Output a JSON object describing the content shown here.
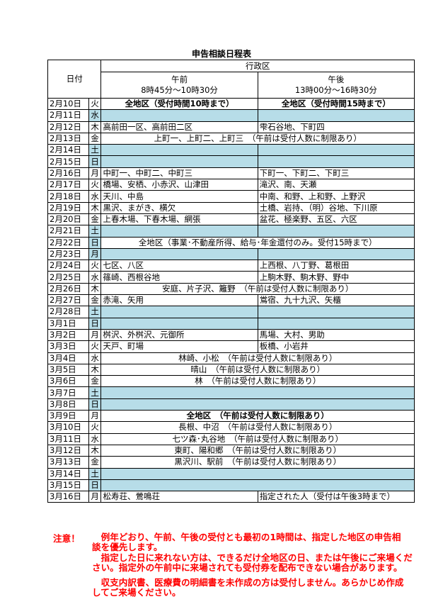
{
  "title": "申告相談日程表",
  "header": {
    "date": "日付",
    "district": "行政区",
    "am_label": "午前",
    "am_time": "8時45分～10時30分",
    "pm_label": "午後",
    "pm_time": "13時00分～16時30分"
  },
  "colors": {
    "holiday_fill": "#b7dde8",
    "notice_text": "#ff0000"
  },
  "rows": [
    {
      "date": "2月10日",
      "wd": "火",
      "type": "split",
      "am": "全地区（受付時間10時まで）",
      "pm": "全地区（受付時間15時まで）",
      "bold": true,
      "center": true
    },
    {
      "date": "2月11日",
      "wd": "水",
      "type": "holiday-split"
    },
    {
      "date": "2月12日",
      "wd": "木",
      "type": "split",
      "am": "高前田一区、高前田二区",
      "pm": "雫石谷地、下町四"
    },
    {
      "date": "2月13日",
      "wd": "金",
      "type": "merged",
      "text": "上町一、上町二、上町三　（午前は受付人数に制限あり）"
    },
    {
      "date": "2月14日",
      "wd": "土",
      "type": "holiday-split"
    },
    {
      "date": "2月15日",
      "wd": "日",
      "type": "holiday-split"
    },
    {
      "date": "2月16日",
      "wd": "月",
      "type": "split",
      "am": "中町一、中町二、中町三",
      "pm": "下町一、下町二、下町三"
    },
    {
      "date": "2月17日",
      "wd": "火",
      "type": "split",
      "am": "橋場、安栖、小赤沢、山津田",
      "pm": "滝沢、南、天瀬"
    },
    {
      "date": "2月18日",
      "wd": "水",
      "type": "split",
      "am": "天川、中島",
      "pm": "中南、和野、上和野、上野沢"
    },
    {
      "date": "2月19日",
      "wd": "木",
      "type": "split",
      "am": "黒沢、まがき、横欠",
      "pm": "土橋、岩持、（明）谷地、下川原"
    },
    {
      "date": "2月20日",
      "wd": "金",
      "type": "split",
      "am": "上春木場、下春木場、網張",
      "pm": "盆花、極楽野、五区、六区"
    },
    {
      "date": "2月21日",
      "wd": "土",
      "type": "holiday-split"
    },
    {
      "date": "2月22日",
      "wd": "日",
      "type": "merged",
      "text": "全地区（事業･不動産所得、給与･年金還付のみ。受付15時まで）",
      "wd_blue": true
    },
    {
      "date": "2月23日",
      "wd": "月",
      "type": "holiday-split"
    },
    {
      "date": "2月24日",
      "wd": "火",
      "type": "split",
      "am": "七区、八区",
      "pm": "上西根、八丁野、葛根田"
    },
    {
      "date": "2月25日",
      "wd": "水",
      "type": "split",
      "am": "篠崎、西根谷地",
      "pm": "上駒木野、駒木野、野中"
    },
    {
      "date": "2月26日",
      "wd": "木",
      "type": "merged",
      "text": "安庭、片子沢、籬野　（午前は受付人数に制限あり）"
    },
    {
      "date": "2月27日",
      "wd": "金",
      "type": "split",
      "am": "赤滝、矢用",
      "pm": "鴬宿、九十九沢、矢櫃"
    },
    {
      "date": "2月28日",
      "wd": "土",
      "type": "holiday-split"
    },
    {
      "date": "3月1日",
      "wd": "日",
      "type": "holiday-split"
    },
    {
      "date": "3月2日",
      "wd": "月",
      "type": "split",
      "am": "桝沢、外桝沢、元御所",
      "pm": "馬場、大村、男助"
    },
    {
      "date": "3月3日",
      "wd": "火",
      "type": "split",
      "am": "天戸、町場",
      "pm": "板橋、小岩井"
    },
    {
      "date": "3月4日",
      "wd": "水",
      "type": "merged",
      "text": "林崎、小松　（午前は受付人数に制限あり）"
    },
    {
      "date": "3月5日",
      "wd": "木",
      "type": "merged",
      "text": "晴山　（午前は受付人数に制限あり）"
    },
    {
      "date": "3月6日",
      "wd": "金",
      "type": "merged",
      "text": "林　（午前は受付人数に制限あり）"
    },
    {
      "date": "3月7日",
      "wd": "土",
      "type": "holiday-merged"
    },
    {
      "date": "3月8日",
      "wd": "日",
      "type": "holiday-merged"
    },
    {
      "date": "3月9日",
      "wd": "月",
      "type": "merged",
      "text": "全地区　（午前は受付人数に制限あり）",
      "bold": true
    },
    {
      "date": "3月10日",
      "wd": "火",
      "type": "merged",
      "text": "長根、中沼　（午前は受付人数に制限あり）"
    },
    {
      "date": "3月11日",
      "wd": "水",
      "type": "merged",
      "text": "七ツ森･丸谷地　（午前は受付人数に制限あり）"
    },
    {
      "date": "3月12日",
      "wd": "木",
      "type": "merged",
      "text": "東町、陽和郷　（午前は受付人数に制限あり）"
    },
    {
      "date": "3月13日",
      "wd": "金",
      "type": "merged",
      "text": "黒沢川、駅前　（午前は受付人数に制限あり）"
    },
    {
      "date": "3月14日",
      "wd": "土",
      "type": "holiday-merged"
    },
    {
      "date": "3月15日",
      "wd": "日",
      "type": "holiday-merged"
    },
    {
      "date": "3月16日",
      "wd": "月",
      "type": "split",
      "am": "松寿荘、鶯鳴荘",
      "pm": "指定された人（受付は午後3時まで）"
    }
  ],
  "notes": {
    "label": "注意！",
    "lines": [
      "　例年どおり、午前、午後の受付とも最初の1時間は、指定した地区の申告相",
      "談を優先します。",
      "　指定した日に来れない方は、できるだけ全地区の日、または午後にご来場くだ",
      "さい。指定外の午前中に来場されても受付券を配布できない場合があります。",
      "　収支内訳書、医療費の明細書を未作成の方は受付しません。あらかじめ作成",
      "してご来場ください。"
    ]
  }
}
